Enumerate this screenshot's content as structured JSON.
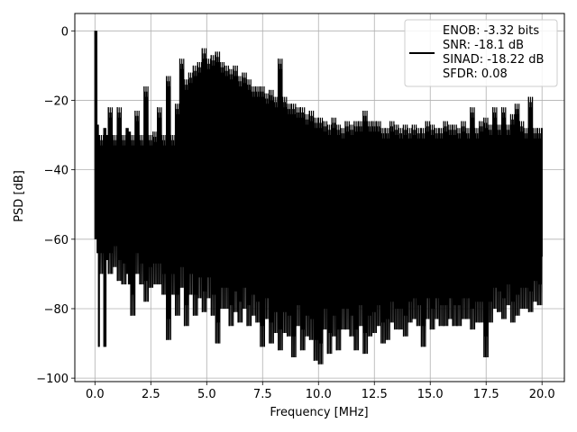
{
  "chart_data": {
    "type": "line",
    "xlabel": "Frequency [MHz]",
    "ylabel": "PSD [dB]",
    "xlim": [
      -0.9,
      21.0
    ],
    "ylim": [
      -101,
      5
    ],
    "x_ticks": [
      0.0,
      2.5,
      5.0,
      7.5,
      10.0,
      12.5,
      15.0,
      17.5,
      20.0
    ],
    "x_tick_labels": [
      "0.0",
      "2.5",
      "5.0",
      "7.5",
      "10.0",
      "12.5",
      "15.0",
      "17.5",
      "20.0"
    ],
    "y_ticks": [
      0,
      -20,
      -40,
      -60,
      -80,
      -100
    ],
    "y_tick_labels": [
      "0",
      "−20",
      "−40",
      "−60",
      "−80",
      "−100"
    ],
    "grid": true,
    "line_color": "#000000",
    "legend": {
      "location": "top-right",
      "lines": [
        "ENOB: -3.32 bits",
        "SNR: -18.1 dB",
        "SINAD: -18.22 dB",
        "SFDR: 0.08"
      ]
    },
    "series": [
      {
        "x": [
          0.0,
          0.1,
          0.16,
          0.2,
          0.4,
          0.5,
          0.6,
          0.8,
          1.0,
          1.2,
          1.4,
          1.5,
          1.6,
          1.8,
          2.0,
          2.2,
          2.4,
          2.6,
          2.8,
          3.0,
          3.2,
          3.4,
          3.6,
          3.8,
          4.0,
          4.2,
          4.4,
          4.6,
          4.8,
          5.0,
          5.2,
          5.4,
          5.6,
          5.8,
          6.0,
          6.2,
          6.4,
          6.6,
          6.8,
          7.0,
          7.2,
          7.4,
          7.6,
          7.8,
          8.0,
          8.2,
          8.4,
          8.6,
          8.8,
          9.0,
          9.2,
          9.4,
          9.6,
          9.8,
          10.0,
          10.2,
          10.4,
          10.6,
          10.8,
          11.0,
          11.2,
          11.4,
          11.6,
          11.8,
          12.0,
          12.2,
          12.4,
          12.6,
          12.8,
          13.0,
          13.2,
          13.4,
          13.6,
          13.8,
          14.0,
          14.2,
          14.4,
          14.6,
          14.8,
          15.0,
          15.2,
          15.4,
          15.6,
          15.8,
          16.0,
          16.2,
          16.4,
          16.6,
          16.8,
          17.0,
          17.2,
          17.4,
          17.6,
          17.8,
          18.0,
          18.2,
          18.4,
          18.6,
          18.8,
          19.0,
          19.2,
          19.4,
          19.6,
          19.8,
          20.0
        ],
        "max": [
          0,
          -27,
          -30,
          -30,
          -28,
          -30,
          -22,
          -30,
          -22,
          -30,
          -28,
          -29,
          -30,
          -23,
          -30,
          -16,
          -30,
          -29,
          -22,
          -30,
          -13,
          -30,
          -21,
          -8,
          -14,
          -12,
          -10,
          -9,
          -5,
          -8,
          -7,
          -6,
          -9,
          -10,
          -11,
          -10,
          -13,
          -12,
          -14,
          -16,
          -16,
          -16,
          -18,
          -17,
          -19,
          -8,
          -19,
          -21,
          -21,
          -22,
          -22,
          -24,
          -23,
          -25,
          -25,
          -26,
          -27,
          -25,
          -27,
          -28,
          -26,
          -27,
          -26,
          -26,
          -23,
          -26,
          -26,
          -26,
          -28,
          -28,
          -26,
          -27,
          -28,
          -27,
          -28,
          -27,
          -28,
          -28,
          -26,
          -27,
          -28,
          -28,
          -26,
          -27,
          -27,
          -28,
          -26,
          -28,
          -22,
          -28,
          -26,
          -25,
          -27,
          -22,
          -27,
          -22,
          -27,
          -24,
          -21,
          -26,
          -28,
          -19,
          -28,
          -28,
          -28
        ],
        "min": [
          -60,
          -64,
          -91,
          -70,
          -91,
          -66,
          -70,
          -68,
          -72,
          -73,
          -70,
          -73,
          -82,
          -70,
          -73,
          -78,
          -74,
          -73,
          -73,
          -76,
          -89,
          -76,
          -82,
          -74,
          -85,
          -76,
          -82,
          -77,
          -81,
          -77,
          -82,
          -90,
          -80,
          -80,
          -85,
          -81,
          -84,
          -80,
          -85,
          -82,
          -84,
          -91,
          -83,
          -90,
          -87,
          -92,
          -87,
          -88,
          -94,
          -85,
          -92,
          -88,
          -89,
          -95,
          -96,
          -86,
          -93,
          -88,
          -92,
          -86,
          -86,
          -88,
          -92,
          -85,
          -93,
          -88,
          -87,
          -85,
          -90,
          -89,
          -84,
          -86,
          -86,
          -88,
          -84,
          -83,
          -85,
          -91,
          -83,
          -86,
          -83,
          -85,
          -85,
          -83,
          -85,
          -85,
          -83,
          -83,
          -86,
          -84,
          -84,
          -94,
          -84,
          -80,
          -81,
          -83,
          -79,
          -84,
          -82,
          -80,
          -80,
          -81,
          -78,
          -79,
          -65
        ]
      }
    ]
  }
}
